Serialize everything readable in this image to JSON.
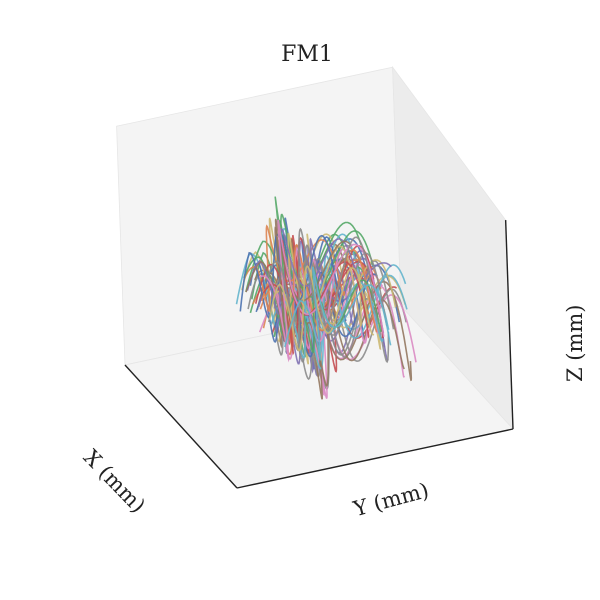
{
  "chart_data": {
    "type": "line",
    "projection": "3d",
    "title": "FM1",
    "xlabel": "X (mm)",
    "ylabel": "Y (mm)",
    "zlabel": "Z (mm)",
    "grid": false,
    "ticks_visible": false,
    "legend": "none",
    "xlim": [
      0,
      1
    ],
    "ylim": [
      0,
      1
    ],
    "zlim": [
      0,
      1
    ],
    "series_count": 60,
    "trajectory_shape": {
      "description_free": true,
      "y_range": [
        0.28,
        0.72
      ],
      "x_center": 0.5,
      "z_range": [
        0.25,
        0.8
      ],
      "oscillations_along_y": 2.5
    },
    "series_colors": [
      "#4c72b0",
      "#dd8452",
      "#55a868",
      "#c44e52",
      "#8172b3",
      "#937860",
      "#da8bc3",
      "#8c8c8c",
      "#ccb974",
      "#64b5cd"
    ],
    "pane_colors": {
      "back_left": "#f2f2f2",
      "back_right": "#ececec",
      "floor": "#f4f4f4",
      "edge": "#222222"
    }
  }
}
